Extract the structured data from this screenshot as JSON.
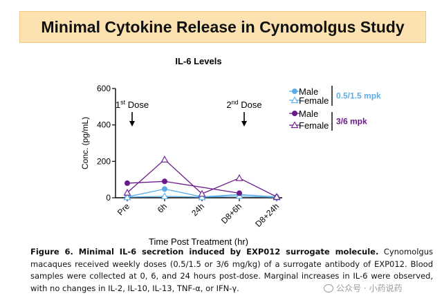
{
  "banner": {
    "title": "Minimal Cytokine Release in Cynomolgus Study"
  },
  "chart_data": {
    "type": "line",
    "title": "IL-6  Levels",
    "xlabel": "Time Post Treatment (hr)",
    "ylabel": "Conc. (pg/mL)",
    "categories": [
      "Pre",
      "6h",
      "24h",
      "D8+6h",
      "D8+24h"
    ],
    "ylim": [
      0,
      600
    ],
    "yticks": [
      0,
      200,
      400,
      600
    ],
    "series": [
      {
        "name": "Male",
        "group": "0.5/1.5 mpk",
        "color": "#5aaee8",
        "marker": "circle",
        "values": [
          5,
          48,
          5,
          18,
          5
        ]
      },
      {
        "name": "Female",
        "group": "0.5/1.5 mpk",
        "color": "#5aaee8",
        "marker": "triangle",
        "values": [
          3,
          8,
          3,
          10,
          2
        ]
      },
      {
        "name": "Male",
        "group": "3/6 mpk",
        "color": "#6a1b8a",
        "marker": "circle",
        "values": [
          80,
          90,
          null,
          25,
          null
        ]
      },
      {
        "name": "Female",
        "group": "3/6 mpk",
        "color": "#6a1b8a",
        "marker": "triangle",
        "values": [
          28,
          210,
          22,
          108,
          5
        ]
      }
    ],
    "legend": {
      "placement": "right",
      "groups": [
        {
          "label": "0.5/1.5 mpk",
          "color": "#5aaee8"
        },
        {
          "label": "3/6 mpk",
          "color": "#6a1b8a"
        }
      ]
    },
    "annotations": [
      {
        "base": "1",
        "sup": "st",
        "rest": " Dose",
        "at_category": "Pre"
      },
      {
        "base": "2",
        "sup": "nd",
        "rest": " Dose",
        "at_category": "D8+6h"
      }
    ]
  },
  "caption": {
    "bold": "Figure 6. Minimal IL-6 secretion induced by EXP012 surrogate molecule.",
    "text": " Cynomolgus macaques received weekly doses (0.5/1.5 or 3/6 mg/kg) of a surrogate antibody of EXP012. Blood samples were collected at 0, 6, and 24 hours post-dose. Marginal increases in IL-6 were observed, with no changes in IL-2, IL-10, IL-13, TNF-α, or IFN-γ."
  },
  "watermark": {
    "text": "公众号 · 小药说药"
  }
}
